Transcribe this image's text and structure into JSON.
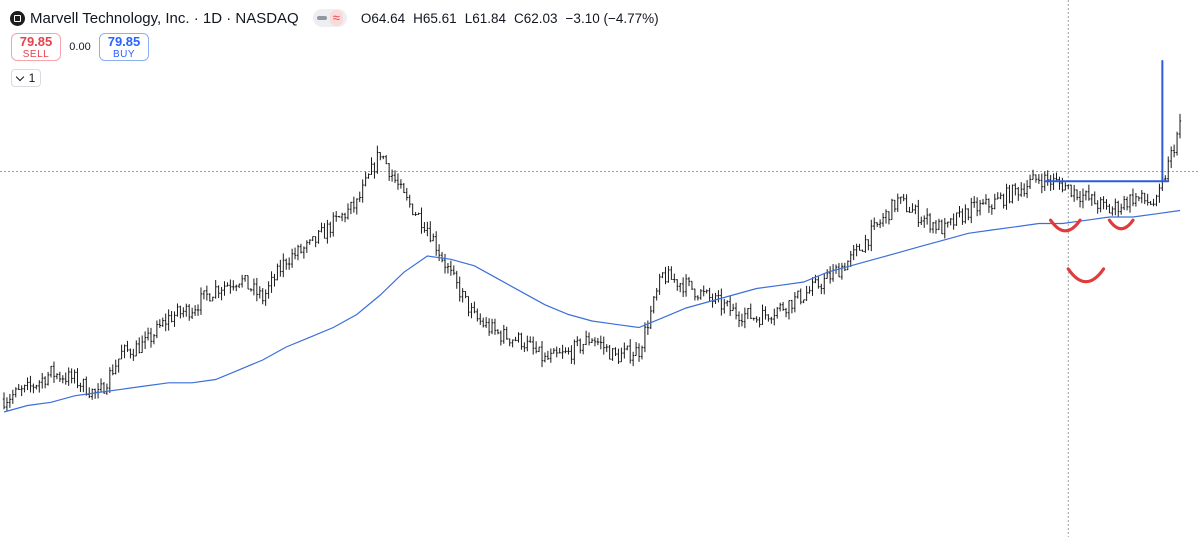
{
  "header": {
    "title": "Marvell Technology, Inc. · 1D · NASDAQ",
    "pill_glyph": "≈",
    "ohlc": {
      "open": "O64.64",
      "high": "H65.61",
      "low": "L61.84",
      "close": "C62.03",
      "change": "−3.10 (−4.77%)"
    }
  },
  "trade": {
    "sell_price": "79.85",
    "sell_label": "SELL",
    "spread": "0.00",
    "buy_price": "79.85",
    "buy_label": "BUY"
  },
  "indicator_toggle": {
    "count": "1"
  },
  "colors": {
    "price": "#1a1a1a",
    "ma": "#3c6fd9",
    "drawing_blue": "#2f5bd8",
    "drawing_red": "#e03a3a",
    "crosshair": "#9aa0a6",
    "sell": "#e5424d",
    "buy": "#2962ff"
  },
  "chart_data": {
    "type": "line",
    "style": "ohlc-bars",
    "title": "",
    "xlabel": "",
    "ylabel": "",
    "grid": false,
    "legend": "none",
    "ylim": [
      0,
      100
    ],
    "x": [
      0,
      4,
      8,
      12,
      16,
      20,
      24,
      28,
      32,
      36,
      40,
      44,
      48,
      52,
      56,
      60,
      64,
      68,
      72,
      76,
      80,
      84,
      88,
      92,
      96,
      100,
      104,
      108,
      112,
      116,
      120,
      124,
      128,
      132,
      136,
      140,
      144,
      148,
      152,
      156,
      160,
      164,
      168,
      172,
      176,
      180,
      184,
      188,
      192,
      196,
      200
    ],
    "series": [
      {
        "values": [
          8,
          11,
          16,
          14,
          9,
          22,
          25,
          33,
          36,
          42,
          45,
          39,
          51,
          55,
          62,
          68,
          84,
          70,
          61,
          46,
          33,
          28,
          26,
          20,
          22,
          27,
          21,
          23,
          46,
          43,
          39,
          35,
          33,
          36,
          40,
          45,
          51,
          60,
          69,
          64,
          60,
          66,
          68,
          72,
          76,
          74,
          70,
          66,
          70,
          68,
          92
        ]
      },
      {
        "values": [
          4,
          6,
          7,
          9,
          10,
          11,
          12,
          13,
          13,
          14,
          17,
          20,
          24,
          27,
          30,
          34,
          40,
          47,
          52,
          51,
          49,
          45,
          41,
          37,
          34,
          32,
          31,
          30,
          33,
          36,
          38,
          40,
          42,
          43,
          44,
          47,
          49,
          51,
          53,
          55,
          57,
          59,
          60,
          61,
          62,
          62,
          63,
          64,
          64,
          65,
          66
        ]
      }
    ],
    "annotations": {
      "resistance_line": {
        "x": [
          177,
          198
        ],
        "y": [
          75,
          75
        ]
      },
      "spike_line": {
        "x": [
          197,
          197
        ],
        "y": [
          75,
          112
        ]
      },
      "crosshair_y": 78,
      "crosshair_x": 181,
      "arcs": [
        {
          "x": [
            178,
            183
          ],
          "y": [
            63,
            63
          ]
        },
        {
          "x": [
            181,
            187
          ],
          "y": [
            48,
            48
          ]
        },
        {
          "x": [
            188,
            192
          ],
          "y": [
            63,
            63
          ]
        }
      ]
    }
  }
}
